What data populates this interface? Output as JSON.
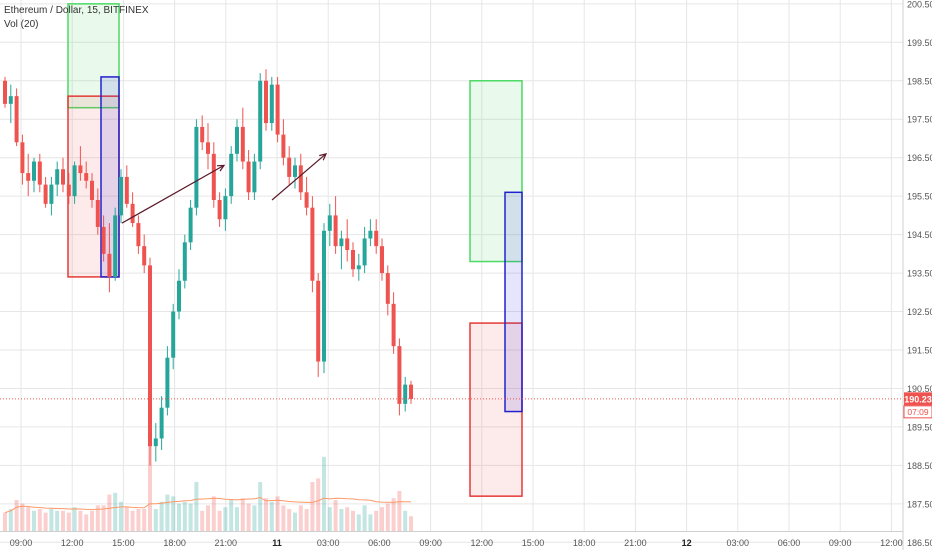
{
  "header": {
    "symbol": "Ethereum / Dollar, 15, BITFINEX",
    "indicator": "Vol (20)"
  },
  "colors": {
    "up": "#26a69a",
    "down": "#ef5350",
    "grid": "#e6e6e6",
    "zone_green": "#4cd964",
    "zone_red": "#e53935",
    "zone_blue": "#2222cc",
    "arrow": "#5a1a2a",
    "price_line": "#ef5350",
    "vol_ma": "#ff9966"
  },
  "price_axis": {
    "ticks": [
      "200.50",
      "199.50",
      "198.50",
      "197.50",
      "196.50",
      "195.50",
      "194.50",
      "193.50",
      "192.50",
      "191.50",
      "190.50",
      "189.50",
      "188.50",
      "187.50",
      "186.50"
    ],
    "current_price": "190.23",
    "countdown": "07:09"
  },
  "time_axis": {
    "ticks": [
      "09:00",
      "12:00",
      "15:00",
      "18:00",
      "21:00",
      "11",
      "03:00",
      "06:00",
      "09:00",
      "12:00",
      "15:00",
      "18:00",
      "21:00",
      "12",
      "03:00",
      "06:00",
      "09:00",
      "12:00"
    ],
    "bold": [
      "11",
      "12"
    ]
  },
  "chart_data": {
    "type": "candlestick",
    "symbol": "Ethereum / Dollar, 15, BITFINEX",
    "interval": "15",
    "ylim": [
      186.3,
      200.6
    ],
    "current_price": 190.23,
    "series": [
      {
        "name": "price",
        "ohlc": [
          [
            198.5,
            198.6,
            197.8,
            197.9
          ],
          [
            197.9,
            198.4,
            197.4,
            198.1
          ],
          [
            198.1,
            198.3,
            196.8,
            196.9
          ],
          [
            196.9,
            197.1,
            195.8,
            196.1
          ],
          [
            196.1,
            196.6,
            195.5,
            195.9
          ],
          [
            195.9,
            196.5,
            195.6,
            196.4
          ],
          [
            196.4,
            196.6,
            195.6,
            195.8
          ],
          [
            195.8,
            196.0,
            195.2,
            195.3
          ],
          [
            195.3,
            196.0,
            195.0,
            195.8
          ],
          [
            195.8,
            196.4,
            195.5,
            196.2
          ],
          [
            196.2,
            196.5,
            195.6,
            195.8
          ],
          [
            195.8,
            196.1,
            195.3,
            195.5
          ],
          [
            195.5,
            196.4,
            195.3,
            196.3
          ],
          [
            196.3,
            196.8,
            195.9,
            196.1
          ],
          [
            196.1,
            196.4,
            195.7,
            195.9
          ],
          [
            195.9,
            196.1,
            195.2,
            195.4
          ],
          [
            195.4,
            195.7,
            194.5,
            194.7
          ],
          [
            194.7,
            195.0,
            193.8,
            194.0
          ],
          [
            194.0,
            194.8,
            193.0,
            193.4
          ],
          [
            193.4,
            195.2,
            193.3,
            195.0
          ],
          [
            195.0,
            196.2,
            194.8,
            196.0
          ],
          [
            196.0,
            196.3,
            195.2,
            195.3
          ],
          [
            195.3,
            195.6,
            194.7,
            194.8
          ],
          [
            194.8,
            195.0,
            194.0,
            194.2
          ],
          [
            194.2,
            194.5,
            193.5,
            193.7
          ],
          [
            193.7,
            193.9,
            188.5,
            189.0
          ],
          [
            189.0,
            189.6,
            188.6,
            189.2
          ],
          [
            189.2,
            190.3,
            188.9,
            190.0
          ],
          [
            190.0,
            191.6,
            189.8,
            191.3
          ],
          [
            191.3,
            192.7,
            191.0,
            192.5
          ],
          [
            192.5,
            193.6,
            192.3,
            193.3
          ],
          [
            193.3,
            194.5,
            193.1,
            194.3
          ],
          [
            194.3,
            195.4,
            194.1,
            195.2
          ],
          [
            195.2,
            197.5,
            195.0,
            197.3
          ],
          [
            197.3,
            197.6,
            196.7,
            196.9
          ],
          [
            196.9,
            197.4,
            196.2,
            196.6
          ],
          [
            196.6,
            196.9,
            195.2,
            195.4
          ],
          [
            195.4,
            195.6,
            194.7,
            194.9
          ],
          [
            194.9,
            195.7,
            194.6,
            195.5
          ],
          [
            195.5,
            196.8,
            195.3,
            196.6
          ],
          [
            196.6,
            197.5,
            196.4,
            197.3
          ],
          [
            197.3,
            197.8,
            196.2,
            196.4
          ],
          [
            196.4,
            196.7,
            195.4,
            195.6
          ],
          [
            195.6,
            196.6,
            195.4,
            196.4
          ],
          [
            196.4,
            198.7,
            196.2,
            198.5
          ],
          [
            198.5,
            198.8,
            197.2,
            197.4
          ],
          [
            197.4,
            198.6,
            197.2,
            198.4
          ],
          [
            198.4,
            198.6,
            196.9,
            197.1
          ],
          [
            197.1,
            197.5,
            196.3,
            196.5
          ],
          [
            196.5,
            196.8,
            195.8,
            196.0
          ],
          [
            196.0,
            196.5,
            195.7,
            196.3
          ],
          [
            196.3,
            196.6,
            195.4,
            195.6
          ],
          [
            195.6,
            196.0,
            195.0,
            195.2
          ],
          [
            195.2,
            195.5,
            193.0,
            193.3
          ],
          [
            193.3,
            193.5,
            190.8,
            191.2
          ],
          [
            191.2,
            194.8,
            190.9,
            194.6
          ],
          [
            194.6,
            195.3,
            194.2,
            195.0
          ],
          [
            195.0,
            195.5,
            194.0,
            194.2
          ],
          [
            194.2,
            194.6,
            193.6,
            194.4
          ],
          [
            194.4,
            194.9,
            193.8,
            194.1
          ],
          [
            194.1,
            194.3,
            193.4,
            193.6
          ],
          [
            193.6,
            194.0,
            193.3,
            193.7
          ],
          [
            193.7,
            194.7,
            193.5,
            194.4
          ],
          [
            194.4,
            194.9,
            194.2,
            194.6
          ],
          [
            194.6,
            194.9,
            194.0,
            194.2
          ],
          [
            194.2,
            194.4,
            193.3,
            193.5
          ],
          [
            193.5,
            193.7,
            192.4,
            192.7
          ],
          [
            192.7,
            193.0,
            191.4,
            191.6
          ],
          [
            191.6,
            191.8,
            189.8,
            190.1
          ],
          [
            190.1,
            190.8,
            189.9,
            190.6
          ],
          [
            190.6,
            190.7,
            190.1,
            190.23
          ]
        ]
      }
    ],
    "volume_ma_period": 20,
    "annotations": [
      {
        "type": "rect",
        "color": "green",
        "y_top": 200.5,
        "y_bottom": 197.8
      },
      {
        "type": "rect",
        "color": "red",
        "y_top": 198.1,
        "y_bottom": 193.4
      },
      {
        "type": "rect",
        "color": "blue",
        "y_top": 198.6,
        "y_bottom": 193.4
      },
      {
        "type": "rect",
        "color": "green",
        "y_top": 198.5,
        "y_bottom": 193.8
      },
      {
        "type": "rect",
        "color": "red",
        "y_top": 192.2,
        "y_bottom": 187.7
      },
      {
        "type": "rect",
        "color": "blue",
        "y_top": 195.6,
        "y_bottom": 189.9
      },
      {
        "type": "arrow",
        "from": 194.8,
        "to": 196.3
      },
      {
        "type": "arrow",
        "from": 195.4,
        "to": 196.6
      }
    ]
  }
}
